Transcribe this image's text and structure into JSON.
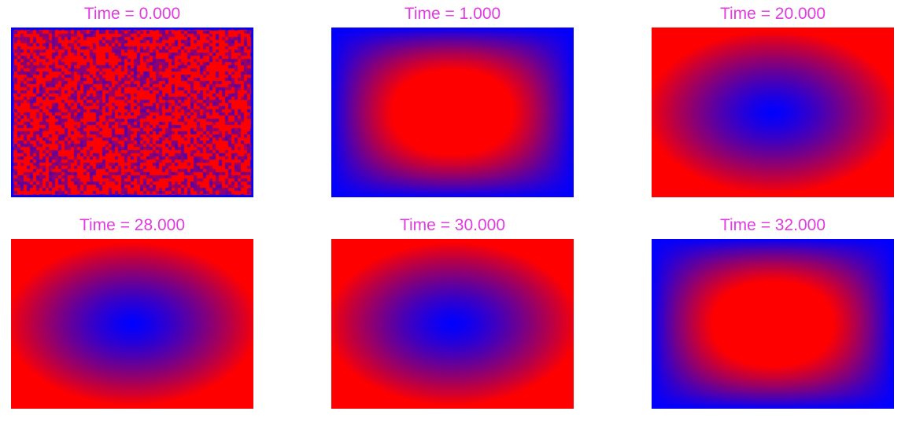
{
  "colors": {
    "title": "#e03ce0",
    "low": "#0000ff",
    "high": "#ff0000"
  },
  "chart_data": [
    {
      "type": "heatmap",
      "title": "Time = 0.000",
      "field": "random"
    },
    {
      "type": "heatmap",
      "title": "Time = 1.000",
      "field": "red-center-blue-border"
    },
    {
      "type": "heatmap",
      "title": "Time = 20.000",
      "field": "blue-center-red-border"
    },
    {
      "type": "heatmap",
      "title": "Time = 28.000",
      "field": "blue-center-red-border"
    },
    {
      "type": "heatmap",
      "title": "Time = 30.000",
      "field": "blue-center-red-border"
    },
    {
      "type": "heatmap",
      "title": "Time = 32.000",
      "field": "red-center-blue-border"
    }
  ]
}
